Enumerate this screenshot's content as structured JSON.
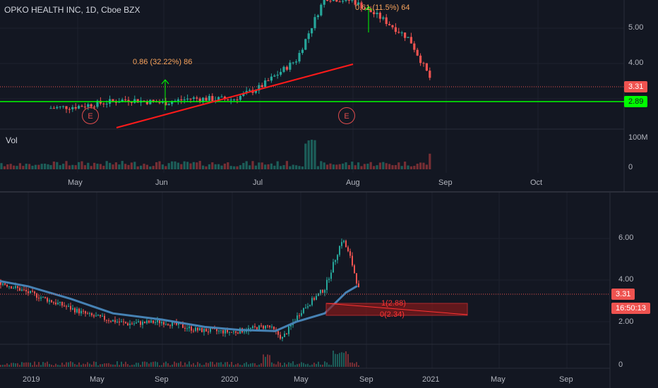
{
  "header": {
    "title": "OPKO HEALTH INC, 1D, Cboe BZX",
    "volume_label": "Vol"
  },
  "colors": {
    "background": "#131722",
    "grid": "#1e222d",
    "up": "#26a69a",
    "down": "#ef5350",
    "trendline": "#ff1a1a",
    "support_line": "#00ff00",
    "ma_line": "#4682b4",
    "measure_text": "#f7a35c",
    "projection_text": "#ff3333"
  },
  "icons": {
    "earnings_marker": "earnings-e-circle-icon",
    "measure_arrow": "up-arrow-icon"
  },
  "top_chart": {
    "y_ticks": [
      "5.00",
      "4.00"
    ],
    "vol_ticks": [
      "100M",
      "0"
    ],
    "x_ticks": [
      "May",
      "Jun",
      "Jul",
      "Aug",
      "Sep",
      "Oct"
    ],
    "last_price_tag": "3.31",
    "support_tag": "2.89",
    "measure_1": "0.86 (32.22%) 86",
    "measure_2": "0.61 (11.5%) 64",
    "earnings_label": "E"
  },
  "bottom_chart": {
    "y_ticks": [
      "6.00",
      "4.00",
      "2.00"
    ],
    "vol_ticks": [
      "0"
    ],
    "x_ticks": [
      "2019",
      "May",
      "Sep",
      "2020",
      "May",
      "Sep",
      "2021",
      "May",
      "Sep"
    ],
    "last_price_tag": "3.31",
    "countdown_tag": "16:50:13",
    "projection_1": "1(2.88)",
    "projection_2": "0(2.34)"
  },
  "chart_data": [
    {
      "type": "candlestick",
      "title": "OPKO HEALTH INC, 1D, Cboe BZX",
      "x_ticks": [
        "May",
        "Jun",
        "Jul",
        "Aug",
        "Sep",
        "Oct"
      ],
      "y_ticks": [
        4.0,
        5.0
      ],
      "close_path": [
        [
          "Apr",
          2.6
        ],
        [
          "May",
          2.65
        ],
        [
          "mid-May",
          2.85
        ],
        [
          "late-May",
          2.8
        ],
        [
          "Jun",
          2.75
        ],
        [
          "mid-Jun",
          2.88
        ],
        [
          "late-Jun",
          2.85
        ],
        [
          "Jul",
          3.2
        ],
        [
          "mid-Jul",
          4.0
        ],
        [
          "late-Jul",
          5.8
        ],
        [
          "Aug",
          5.7
        ],
        [
          "mid-Aug",
          5.2
        ],
        [
          "late-Aug",
          4.6
        ],
        [
          "end",
          3.31
        ]
      ],
      "last_close": 3.31,
      "support_level": 2.89,
      "measurements": [
        "0.86 (32.22%) 86",
        "0.61 (11.5%) 64"
      ],
      "volume_axis": [
        "0",
        "100M"
      ]
    },
    {
      "type": "candlestick",
      "x_ticks": [
        "2019",
        "May",
        "Sep",
        "2020",
        "May",
        "Sep",
        "2021",
        "May",
        "Sep"
      ],
      "y_ticks": [
        2.0,
        4.0,
        6.0
      ],
      "close_path": [
        [
          "2019",
          3.9
        ],
        [
          "Mar 2019",
          3.4
        ],
        [
          "May 2019",
          2.3
        ],
        [
          "Jul 2019",
          1.9
        ],
        [
          "Sep 2019",
          2.0
        ],
        [
          "Nov 2019",
          1.6
        ],
        [
          "2020",
          1.5
        ],
        [
          "Mar 2020",
          1.8
        ],
        [
          "Apr 2020",
          1.2
        ],
        [
          "May 2020",
          2.5
        ],
        [
          "Jun 2020",
          3.6
        ],
        [
          "Jul 2020",
          6.0
        ],
        [
          "Aug 2020",
          5.0
        ],
        [
          "end",
          3.31
        ]
      ],
      "last_close": 3.31,
      "projection_levels": [
        2.88,
        2.34
      ],
      "overlay": "moving average"
    }
  ]
}
